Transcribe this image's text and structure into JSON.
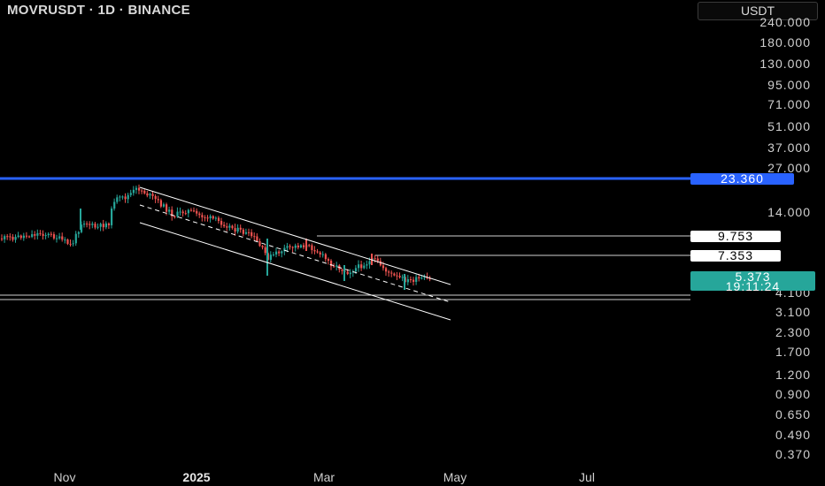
{
  "header": {
    "title": "MOVRUSDT · 1D · BINANCE"
  },
  "price_axis": {
    "currency": "USDT",
    "ticks": [
      "240.000",
      "180.000",
      "130.000",
      "95.000",
      "71.000",
      "51.000",
      "37.000",
      "27.000",
      "14.000",
      "4.100",
      "3.100",
      "2.300",
      "1.700",
      "1.200",
      "0.900",
      "0.650",
      "0.490",
      "0.370"
    ]
  },
  "time_axis": {
    "ticks": [
      "Nov",
      "2025",
      "Mar",
      "May",
      "Jul"
    ],
    "bold_tick": "2025"
  },
  "price_labels": {
    "resistance": "23.360",
    "level_1": "9.753",
    "level_2": "7.353",
    "last_price": "5.373",
    "countdown": "19:11:24"
  },
  "colors": {
    "background": "#000000",
    "bull_candle": "#26a69a",
    "bear_candle": "#ef5350",
    "resistance_line": "#2962ff",
    "channel_line": "#ffffff"
  },
  "chart_data": {
    "type": "candlestick",
    "symbol": "MOVRUSDT",
    "interval": "1D",
    "exchange": "BINANCE",
    "y_scale": "log",
    "ylim": [
      0.37,
      240
    ],
    "drawn_levels": [
      23.36,
      9.753,
      7.353,
      4.1
    ],
    "last_price": 5.373,
    "channel": "descending parallel channel with dashed midline"
  }
}
